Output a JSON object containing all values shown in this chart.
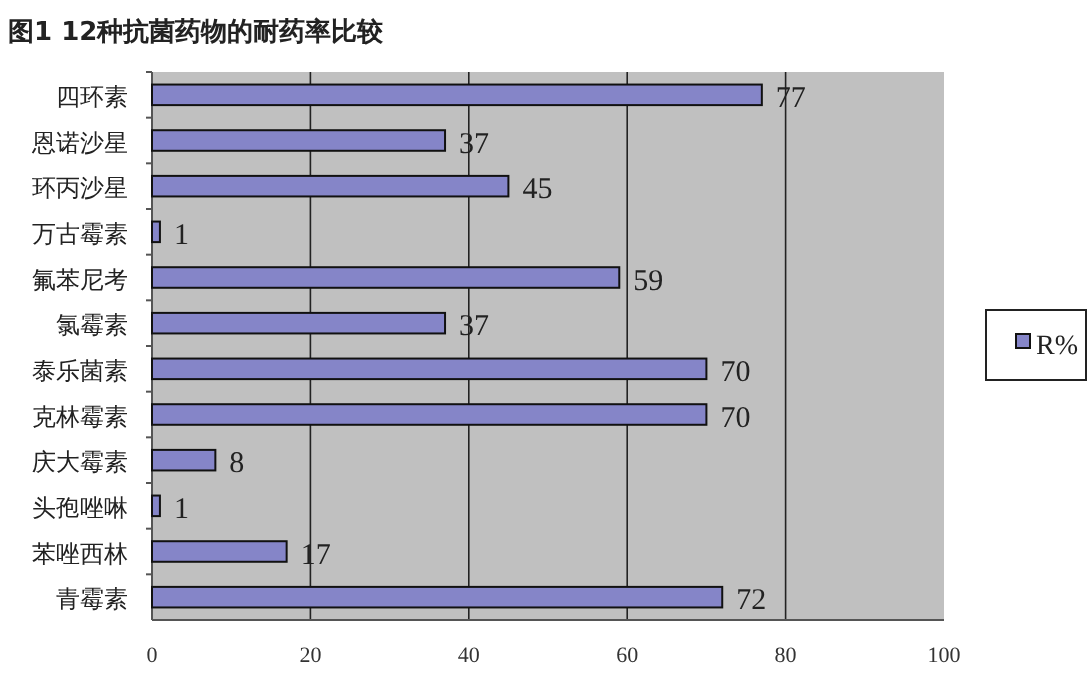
{
  "chart_data": {
    "type": "bar",
    "orientation": "horizontal",
    "title": "图1 12种抗菌药物的耐药率比较",
    "categories": [
      "四环素",
      "恩诺沙星",
      "环丙沙星",
      "万古霉素",
      "氟苯尼考",
      "氯霉素",
      "泰乐菌素",
      "克林霉素",
      "庆大霉素",
      "头孢唑啉",
      "苯唑西林",
      "青霉素"
    ],
    "series": [
      {
        "name": "R%",
        "color": "#8585c8",
        "values": [
          77,
          37,
          45,
          1,
          59,
          37,
          70,
          70,
          8,
          1,
          17,
          72
        ]
      }
    ],
    "xlim": [
      0,
      100
    ],
    "xticks": [
      0,
      20,
      40,
      60,
      80,
      100
    ],
    "grid": "x",
    "legend": "right",
    "data_labels": true
  }
}
